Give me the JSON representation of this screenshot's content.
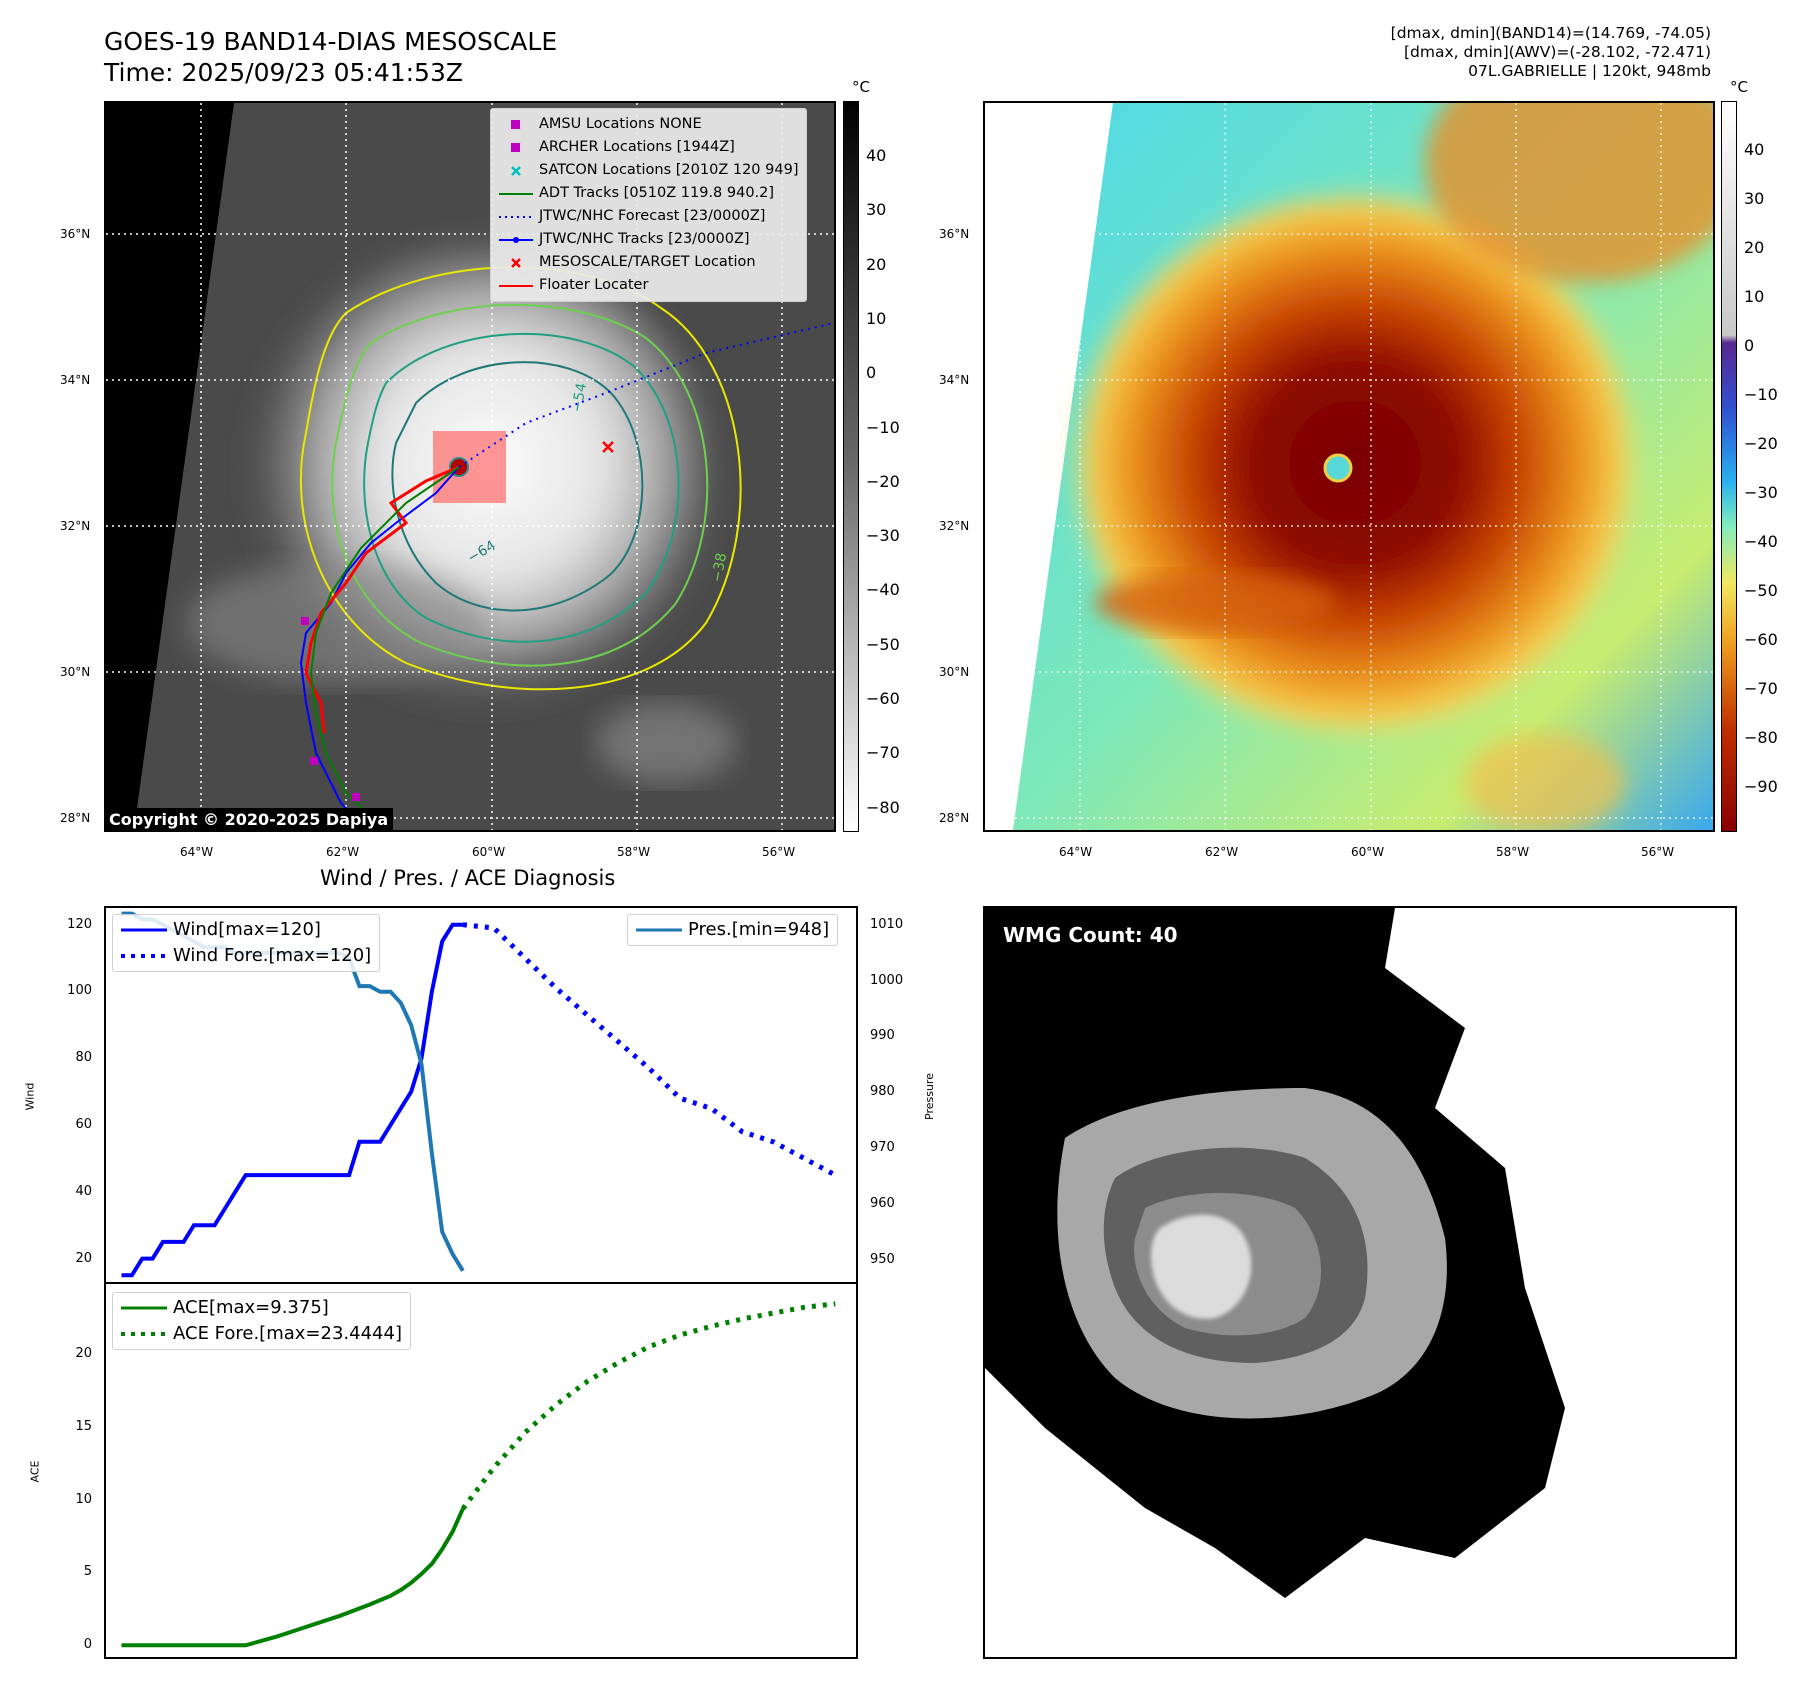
{
  "header": {
    "title_line1": "GOES-19 BAND14-DIAS MESOSCALE",
    "title_line2": "Time: 2025/09/23 05:41:53Z",
    "info_line1": "[dmax, dmin](BAND14)=(14.769, -74.05)",
    "info_line2": "[dmax, dmin](AWV)=(-28.102, -72.471)",
    "info_line3": "07L.GABRIELLE | 120kt, 948mb"
  },
  "map": {
    "lat_labels": [
      "36°N",
      "34°N",
      "32°N",
      "30°N",
      "28°N"
    ],
    "lon_labels": [
      "64°W",
      "62°W",
      "60°W",
      "58°W",
      "56°W"
    ],
    "colorbar_unit": "°C",
    "gray_colorbar_ticks": [
      "40",
      "30",
      "20",
      "10",
      "0",
      "−10",
      "−20",
      "−30",
      "−40",
      "−50",
      "−60",
      "−70",
      "−80"
    ],
    "color_colorbar_ticks": [
      "40",
      "30",
      "20",
      "10",
      "0",
      "−10",
      "−20",
      "−30",
      "−40",
      "−50",
      "−60",
      "−70",
      "−80",
      "−90"
    ],
    "contour_labels": [
      "−54",
      "−64",
      "−38"
    ],
    "copyright": "Copyright © 2020-2025 Dapiya",
    "legend": [
      {
        "label": "AMSU Locations NONE",
        "color": "#bf00bf",
        "marker": "square"
      },
      {
        "label": "ARCHER Locations [1944Z]",
        "color": "#bf00bf",
        "marker": "square"
      },
      {
        "label": "SATCON Locations [2010Z 120 949]",
        "color": "#00bfbf",
        "marker": "x"
      },
      {
        "label": "ADT Tracks [0510Z 119.8 940.2]",
        "color": "#008000",
        "marker": "line"
      },
      {
        "label": "JTWC/NHC Forecast [23/0000Z]",
        "color": "#0000ff",
        "marker": "dotted"
      },
      {
        "label": "JTWC/NHC Tracks [23/0000Z]",
        "color": "#0000ff",
        "marker": "line-dot"
      },
      {
        "label": "MESOSCALE/TARGET Location",
        "color": "#ff0000",
        "marker": "x"
      },
      {
        "label": "Floater Locater",
        "color": "#ff0000",
        "marker": "line"
      }
    ]
  },
  "diagnosis": {
    "title": "Wind / Pres. / ACE Diagnosis",
    "wind_ylabel": "Wind",
    "pres_ylabel": "Pressure",
    "ace_ylabel": "ACE",
    "wind_ticks": [
      "120",
      "100",
      "80",
      "60",
      "40",
      "20"
    ],
    "pres_ticks": [
      "1010",
      "1000",
      "990",
      "980",
      "970",
      "960",
      "950"
    ],
    "ace_ticks": [
      "20",
      "15",
      "10",
      "5",
      "0"
    ],
    "legend_wind": "Wind[max=120]",
    "legend_wind_fore": "Wind Fore.[max=120]",
    "legend_pres": "Pres.[min=948]",
    "legend_ace": "ACE[max=9.375]",
    "legend_ace_fore": "ACE Fore.[max=23.4444]"
  },
  "wmg": {
    "label": "WMG Count: 40"
  },
  "chart_data": [
    {
      "type": "line",
      "name": "wind-pressure",
      "series": [
        {
          "name": "Wind[max=120]",
          "color": "#0000ff",
          "style": "solid",
          "x": [
            0,
            1,
            2,
            3,
            4,
            5,
            6,
            7,
            8,
            9,
            10,
            11,
            12,
            13,
            14,
            15,
            16,
            17,
            18,
            19,
            20,
            21,
            22,
            23,
            24,
            25,
            26,
            27,
            28,
            29,
            30,
            31,
            32,
            33
          ],
          "values": [
            15,
            15,
            20,
            20,
            25,
            25,
            25,
            30,
            30,
            30,
            35,
            40,
            45,
            45,
            45,
            45,
            45,
            45,
            45,
            45,
            45,
            45,
            45,
            55,
            55,
            55,
            60,
            65,
            70,
            80,
            100,
            115,
            120,
            120
          ]
        },
        {
          "name": "Wind Fore.[max=120]",
          "color": "#0000ff",
          "style": "dotted",
          "x": [
            33,
            36,
            39,
            42,
            45,
            48,
            51,
            54,
            57,
            60,
            63,
            66,
            69
          ],
          "values": [
            120,
            119,
            110,
            101,
            93,
            85,
            77,
            68,
            65,
            58,
            55,
            50,
            45
          ]
        },
        {
          "name": "Pres.[min=948]",
          "color": "#1f77b4",
          "style": "solid",
          "axis": "right",
          "x": [
            0,
            1,
            2,
            3,
            4,
            5,
            6,
            7,
            8,
            9,
            10,
            11,
            12,
            13,
            14,
            15,
            16,
            17,
            18,
            19,
            20,
            21,
            22,
            23,
            24,
            25,
            26,
            27,
            28,
            29,
            30,
            31,
            32,
            33
          ],
          "values": [
            1012,
            1012,
            1011,
            1011,
            1010,
            1009,
            1008,
            1007,
            1006,
            1006,
            1006,
            1005,
            1005,
            1005,
            1005,
            1005,
            1005,
            1005,
            1005,
            1005,
            1005,
            1005,
            1004,
            999,
            999,
            998,
            998,
            996,
            992,
            985,
            969,
            955,
            951,
            948
          ]
        }
      ],
      "wind_ylim": [
        13,
        125
      ],
      "pres_ylim": [
        946,
        1013
      ]
    },
    {
      "type": "line",
      "name": "ace",
      "series": [
        {
          "name": "ACE[max=9.375]",
          "color": "#008000",
          "style": "solid",
          "x": [
            0,
            5,
            10,
            12,
            15,
            18,
            21,
            24,
            26,
            27,
            28,
            29,
            30,
            31,
            32,
            33
          ],
          "values": [
            0,
            0,
            0,
            0,
            0.6,
            1.3,
            2.0,
            2.8,
            3.4,
            3.8,
            4.3,
            4.9,
            5.6,
            6.6,
            7.8,
            9.375
          ]
        },
        {
          "name": "ACE Fore.[max=23.4444]",
          "color": "#008000",
          "style": "dotted",
          "x": [
            33,
            36,
            39,
            42,
            45,
            48,
            51,
            54,
            57,
            60,
            63,
            66,
            69
          ],
          "values": [
            9.375,
            12.2,
            14.6,
            16.5,
            18.1,
            19.4,
            20.5,
            21.3,
            21.9,
            22.4,
            22.8,
            23.2,
            23.4444
          ]
        }
      ],
      "ylim": [
        -0.8,
        24.8
      ]
    }
  ]
}
